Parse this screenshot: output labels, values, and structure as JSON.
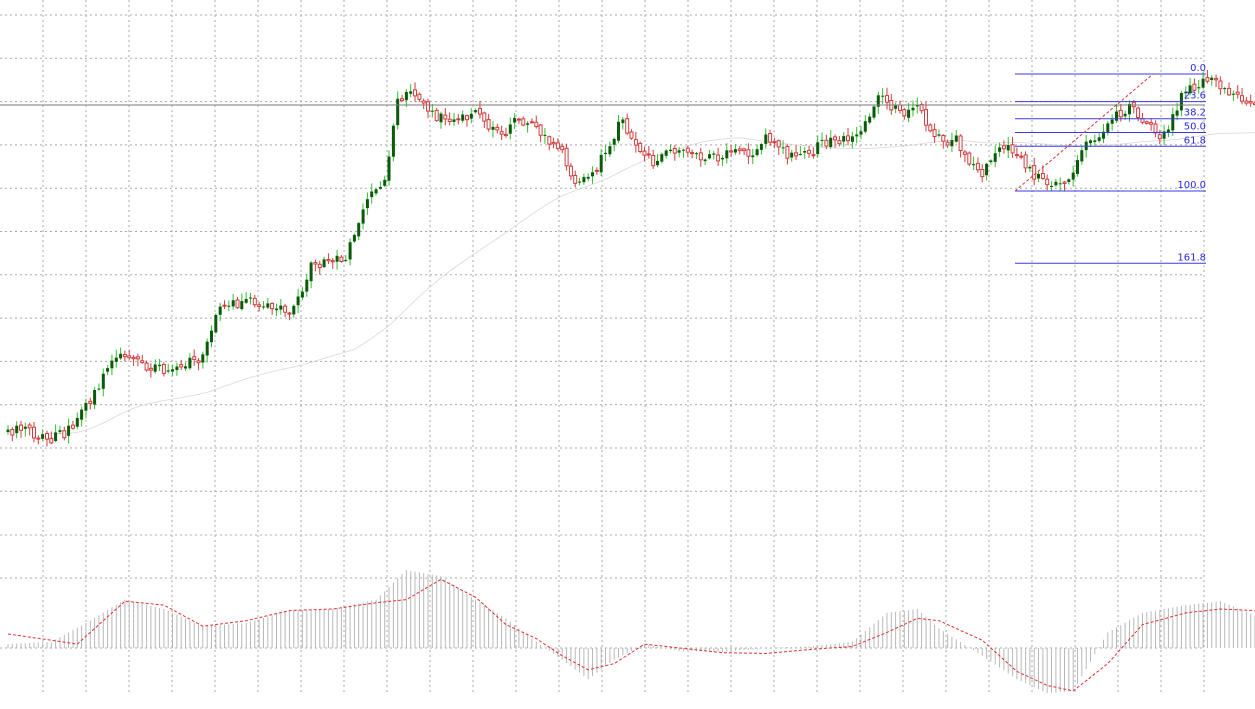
{
  "chart_data": {
    "type": "candlestick",
    "grid": true,
    "colors": {
      "bull": "#0a5a0a",
      "bear": "#d23c3c",
      "bull_wick": "#2fbf2f",
      "bear_wick": "#d23c3c",
      "fib": "#3a3ae6",
      "signal": "#e03030",
      "histogram": "#b8b8b8"
    },
    "price_range": [
      0,
      1000
    ],
    "current_price": 860,
    "anchors": [
      [
        0,
        210
      ],
      [
        5,
        205
      ],
      [
        10,
        194
      ],
      [
        15,
        212
      ],
      [
        20,
        285
      ],
      [
        25,
        355
      ],
      [
        28,
        360
      ],
      [
        32,
        335
      ],
      [
        38,
        325
      ],
      [
        45,
        360
      ],
      [
        48,
        445
      ],
      [
        55,
        470
      ],
      [
        62,
        455
      ],
      [
        66,
        450
      ],
      [
        70,
        535
      ],
      [
        75,
        548
      ],
      [
        78,
        557
      ],
      [
        83,
        672
      ],
      [
        87,
        710
      ],
      [
        90,
        873
      ],
      [
        93,
        890
      ],
      [
        97,
        850
      ],
      [
        100,
        835
      ],
      [
        104,
        822
      ],
      [
        107,
        850
      ],
      [
        111,
        820
      ],
      [
        114,
        797
      ],
      [
        118,
        832
      ],
      [
        122,
        818
      ],
      [
        126,
        780
      ],
      [
        128,
        760
      ],
      [
        131,
        712
      ],
      [
        135,
        722
      ],
      [
        138,
        765
      ],
      [
        142,
        835
      ],
      [
        145,
        770
      ],
      [
        149,
        745
      ],
      [
        152,
        768
      ],
      [
        157,
        765
      ],
      [
        160,
        758
      ],
      [
        165,
        753
      ],
      [
        168,
        770
      ],
      [
        172,
        760
      ],
      [
        175,
        800
      ],
      [
        178,
        768
      ],
      [
        182,
        755
      ],
      [
        186,
        770
      ],
      [
        190,
        795
      ],
      [
        194,
        790
      ],
      [
        198,
        820
      ],
      [
        201,
        875
      ],
      [
        204,
        860
      ],
      [
        207,
        835
      ],
      [
        210,
        853
      ],
      [
        213,
        810
      ],
      [
        216,
        785
      ],
      [
        219,
        790
      ],
      [
        222,
        745
      ],
      [
        225,
        725
      ],
      [
        228,
        760
      ],
      [
        231,
        775
      ],
      [
        234,
        750
      ],
      [
        237,
        720
      ],
      [
        241,
        700
      ],
      [
        245,
        705
      ],
      [
        248,
        780
      ],
      [
        252,
        790
      ],
      [
        256,
        840
      ],
      [
        260,
        855
      ],
      [
        263,
        820
      ],
      [
        266,
        792
      ],
      [
        269,
        835
      ],
      [
        272,
        895
      ],
      [
        276,
        905
      ],
      [
        279,
        908
      ],
      [
        282,
        880
      ],
      [
        285,
        870
      ],
      [
        288,
        860
      ]
    ],
    "fibonacci": {
      "levels": [
        {
          "level": 0.0,
          "label": "0.0"
        },
        {
          "level": 0.236,
          "label": "23.6"
        },
        {
          "level": 0.382,
          "label": "38.2"
        },
        {
          "level": 0.5,
          "label": "50.0"
        },
        {
          "level": 0.618,
          "label": "61.8"
        },
        {
          "level": 1.0,
          "label": "100.0"
        },
        {
          "level": 1.618,
          "label": "161.8"
        }
      ],
      "high": 922,
      "low": 688
    },
    "oscillator": {
      "range": [
        -1,
        1
      ],
      "anchors": [
        [
          0,
          0.05
        ],
        [
          10,
          0.08
        ],
        [
          18,
          0.32
        ],
        [
          27,
          0.62
        ],
        [
          36,
          0.5
        ],
        [
          45,
          0.28
        ],
        [
          55,
          0.32
        ],
        [
          65,
          0.48
        ],
        [
          75,
          0.5
        ],
        [
          85,
          0.62
        ],
        [
          92,
          1.0
        ],
        [
          100,
          0.92
        ],
        [
          108,
          0.62
        ],
        [
          115,
          0.38
        ],
        [
          122,
          0.08
        ],
        [
          128,
          -0.15
        ],
        [
          134,
          -0.4
        ],
        [
          140,
          -0.15
        ],
        [
          147,
          0.05
        ],
        [
          155,
          -0.04
        ],
        [
          165,
          -0.05
        ],
        [
          175,
          0.0
        ],
        [
          185,
          0.02
        ],
        [
          195,
          0.08
        ],
        [
          203,
          0.45
        ],
        [
          210,
          0.5
        ],
        [
          215,
          0.25
        ],
        [
          225,
          -0.1
        ],
        [
          233,
          -0.4
        ],
        [
          240,
          -0.58
        ],
        [
          246,
          -0.55
        ],
        [
          254,
          0.2
        ],
        [
          262,
          0.45
        ],
        [
          272,
          0.55
        ],
        [
          280,
          0.6
        ],
        [
          288,
          0.42
        ]
      ],
      "signal_anchors": [
        [
          0,
          0.18
        ],
        [
          10,
          0.1
        ],
        [
          16,
          0.05
        ],
        [
          27,
          0.6
        ],
        [
          36,
          0.55
        ],
        [
          45,
          0.28
        ],
        [
          55,
          0.35
        ],
        [
          65,
          0.48
        ],
        [
          75,
          0.5
        ],
        [
          85,
          0.58
        ],
        [
          92,
          0.62
        ],
        [
          100,
          0.88
        ],
        [
          108,
          0.65
        ],
        [
          115,
          0.3
        ],
        [
          122,
          0.12
        ],
        [
          128,
          -0.1
        ],
        [
          134,
          -0.28
        ],
        [
          140,
          -0.2
        ],
        [
          147,
          0.05
        ],
        [
          155,
          0.0
        ],
        [
          165,
          -0.06
        ],
        [
          175,
          -0.07
        ],
        [
          185,
          -0.02
        ],
        [
          195,
          0.02
        ],
        [
          203,
          0.2
        ],
        [
          210,
          0.38
        ],
        [
          215,
          0.35
        ],
        [
          225,
          0.1
        ],
        [
          233,
          -0.3
        ],
        [
          240,
          -0.48
        ],
        [
          246,
          -0.55
        ],
        [
          254,
          -0.2
        ],
        [
          262,
          0.3
        ],
        [
          272,
          0.45
        ],
        [
          280,
          0.5
        ],
        [
          288,
          0.48
        ]
      ]
    }
  }
}
